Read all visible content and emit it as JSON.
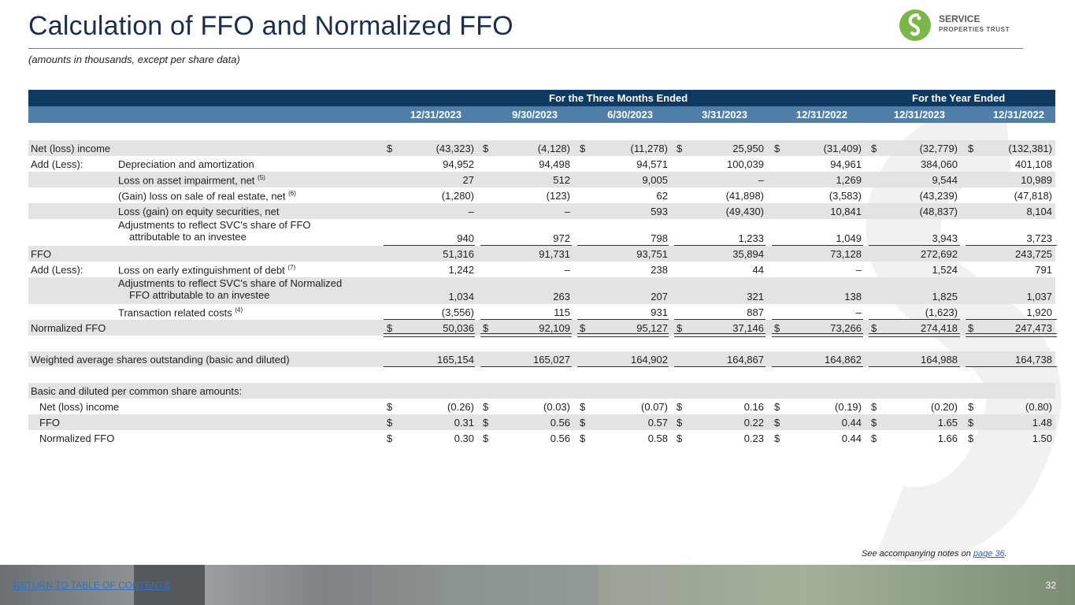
{
  "title": "Calculation of FFO and Normalized FFO",
  "subtitle": "(amounts in thousands, except per share data)",
  "logo": {
    "line1": "SERVICE",
    "line2": "PROPERTIES TRUST",
    "color": "#7ab648"
  },
  "header": {
    "group1": "For the Three Months Ended",
    "group2": "For the Year Ended",
    "columns": [
      "12/31/2023",
      "9/30/2023",
      "6/30/2023",
      "3/31/2023",
      "12/31/2022",
      "12/31/2023",
      "12/31/2022"
    ]
  },
  "currency": "$",
  "rows": {
    "net_income": {
      "label": "Net (loss) income",
      "values": [
        "(43,323)",
        "(4,128)",
        "(11,278)",
        "25,950",
        "(31,409)",
        "(32,779)",
        "(132,381)"
      ]
    },
    "add_less_1": "Add (Less):",
    "depreciation": {
      "label": "Depreciation and amortization",
      "values": [
        "94,952",
        "94,498",
        "94,571",
        "100,039",
        "94,961",
        "384,060",
        "401,108"
      ]
    },
    "impairment": {
      "label": "Loss on asset impairment, net",
      "note": "(5)",
      "values": [
        "27",
        "512",
        "9,005",
        "–",
        "1,269",
        "9,544",
        "10,989"
      ]
    },
    "gain_sale": {
      "label": "(Gain) loss on sale of real estate, net",
      "note": "(6)",
      "values": [
        "(1,280)",
        "(123)",
        "62",
        "(41,898)",
        "(3,583)",
        "(43,239)",
        "(47,818)"
      ]
    },
    "equity_sec": {
      "label": "Loss (gain) on equity securities, net",
      "values": [
        "–",
        "–",
        "593",
        "(49,430)",
        "10,841",
        "(48,837)",
        "8,104"
      ]
    },
    "adj_ffo": {
      "label_line1": "Adjustments to reflect SVC's share of FFO",
      "label_line2": "attributable to an investee",
      "values": [
        "940",
        "972",
        "798",
        "1,233",
        "1,049",
        "3,943",
        "3,723"
      ]
    },
    "ffo": {
      "label": "FFO",
      "values": [
        "51,316",
        "91,731",
        "93,751",
        "35,894",
        "73,128",
        "272,692",
        "243,725"
      ]
    },
    "add_less_2": "Add (Less):",
    "early_ext": {
      "label": "Loss on early extinguishment of debt",
      "note": "(7)",
      "values": [
        "1,242",
        "–",
        "238",
        "44",
        "–",
        "1,524",
        "791"
      ]
    },
    "adj_norm": {
      "label_line1": "Adjustments to reflect SVC's share of Normalized",
      "label_line2": "FFO attributable to an investee",
      "values": [
        "1,034",
        "263",
        "207",
        "321",
        "138",
        "1,825",
        "1,037"
      ]
    },
    "transaction": {
      "label": "Transaction related costs",
      "note": "(4)",
      "values": [
        "(3,556)",
        "115",
        "931",
        "887",
        "–",
        "(1,623)",
        "1,920"
      ]
    },
    "norm_ffo": {
      "label": "Normalized FFO",
      "values": [
        "50,036",
        "92,109",
        "95,127",
        "37,146",
        "73,266",
        "274,418",
        "247,473"
      ]
    },
    "wtd_shares": {
      "label": "Weighted average shares outstanding (basic and diluted)",
      "values": [
        "165,154",
        "165,027",
        "164,902",
        "164,867",
        "164,862",
        "164,988",
        "164,738"
      ]
    },
    "per_share_header": "Basic and diluted per common share amounts:",
    "ps_net_income": {
      "label": "Net (loss) income",
      "values": [
        "(0.26)",
        "(0.03)",
        "(0.07)",
        "0.16",
        "(0.19)",
        "(0.20)",
        "(0.80)"
      ]
    },
    "ps_ffo": {
      "label": "FFO",
      "values": [
        "0.31",
        "0.56",
        "0.57",
        "0.22",
        "0.44",
        "1.65",
        "1.48"
      ]
    },
    "ps_norm_ffo": {
      "label": "Normalized FFO",
      "values": [
        "0.30",
        "0.56",
        "0.58",
        "0.23",
        "0.44",
        "1.66",
        "1.50"
      ]
    }
  },
  "notes": {
    "prefix": "See accompanying notes on",
    "link": "page 36",
    "suffix": "."
  },
  "footer": {
    "toc_link": "RETURN TO TABLE OF CONTENTS",
    "page_number": "32"
  },
  "colors": {
    "header_dark": "#0e3a61",
    "header_light": "#4f7fa8",
    "row_shade": "#e3e3e3",
    "brand_green": "#7ab648"
  }
}
